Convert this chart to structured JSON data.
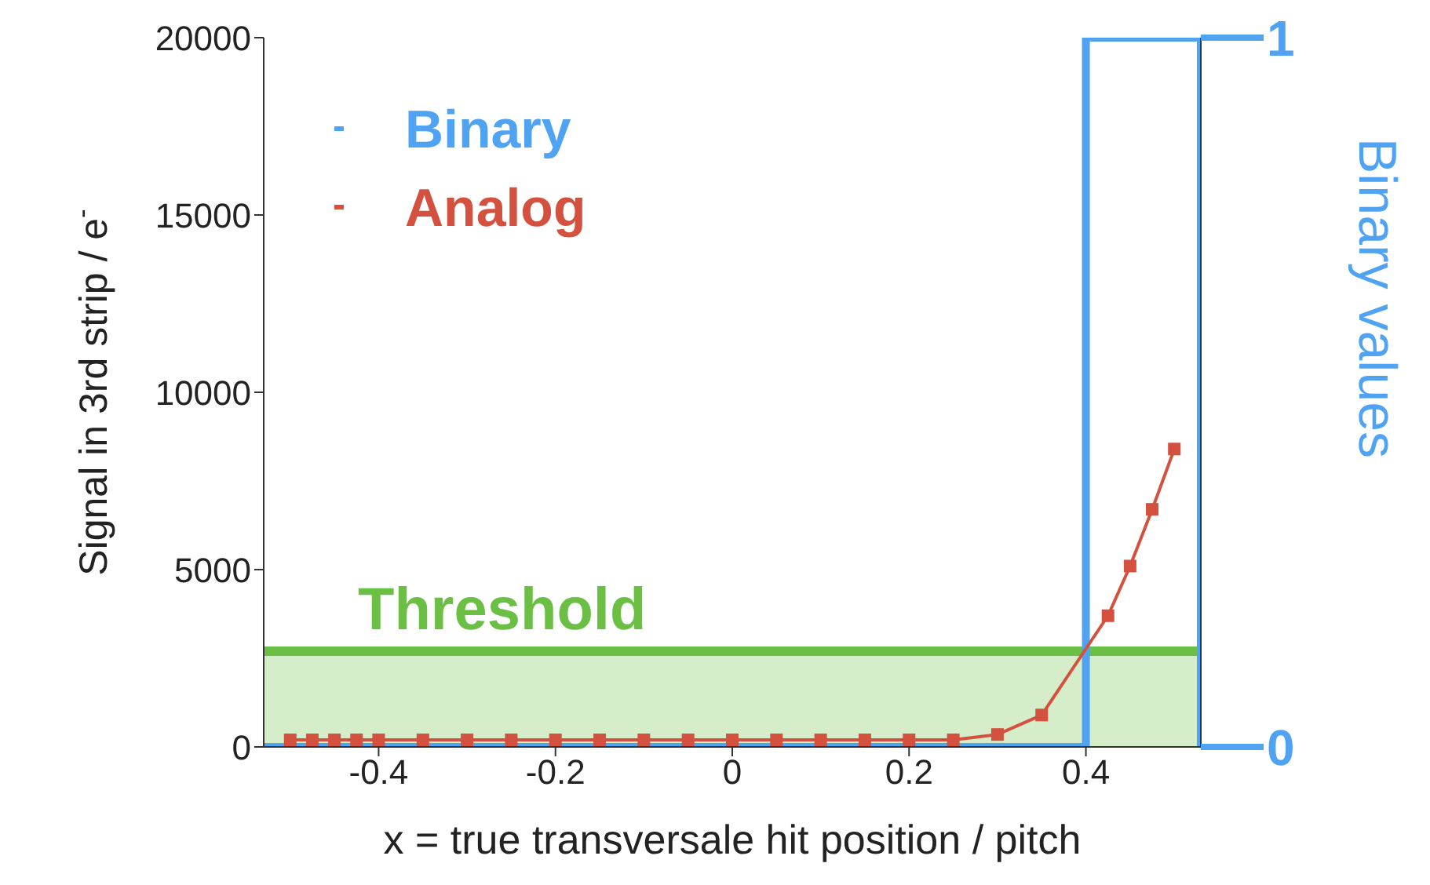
{
  "chart_data": {
    "type": "line",
    "xlabel": "x = true transversale hit position / pitch",
    "ylabel": "Signal in 3rd strip / e$^{-}$",
    "y2label": "Binary values",
    "xlim": [
      -0.53,
      0.53
    ],
    "xticks": [
      -0.4,
      -0.2,
      0,
      0.2,
      0.4
    ],
    "ylim": [
      0,
      20000
    ],
    "yticks": [
      0,
      5000,
      10000,
      15000,
      20000
    ],
    "y2lim": [
      0,
      1
    ],
    "y2ticks": [
      0,
      1
    ],
    "series": [
      {
        "name": "Binary",
        "color": "#4fa3f2",
        "axis": "y2",
        "marker": "none",
        "x": [
          -0.53,
          0.4,
          0.4,
          0.53,
          0.53
        ],
        "values": [
          0,
          0,
          1,
          1,
          0
        ]
      },
      {
        "name": "Analog",
        "color": "#d4503f",
        "marker": "square",
        "x": [
          -0.5,
          -0.475,
          -0.45,
          -0.425,
          -0.4,
          -0.35,
          -0.3,
          -0.25,
          -0.2,
          -0.15,
          -0.1,
          -0.05,
          0,
          0.05,
          0.1,
          0.15,
          0.2,
          0.25,
          0.3,
          0.35,
          0.425,
          0.45,
          0.475,
          0.5
        ],
        "values": [
          200,
          200,
          200,
          200,
          200,
          200,
          200,
          200,
          200,
          200,
          200,
          200,
          200,
          200,
          200,
          200,
          200,
          200,
          350,
          900,
          3700,
          5100,
          6700,
          8400
        ]
      }
    ],
    "ref_lines": [
      {
        "axis": "y",
        "value": 2700,
        "label": "Threshold",
        "color": "#6cbf45"
      }
    ],
    "bands": [
      {
        "axis": "y",
        "from": 0,
        "to": 2700,
        "color": "#d6edc9"
      }
    ],
    "legend": "top left",
    "grid": false
  }
}
